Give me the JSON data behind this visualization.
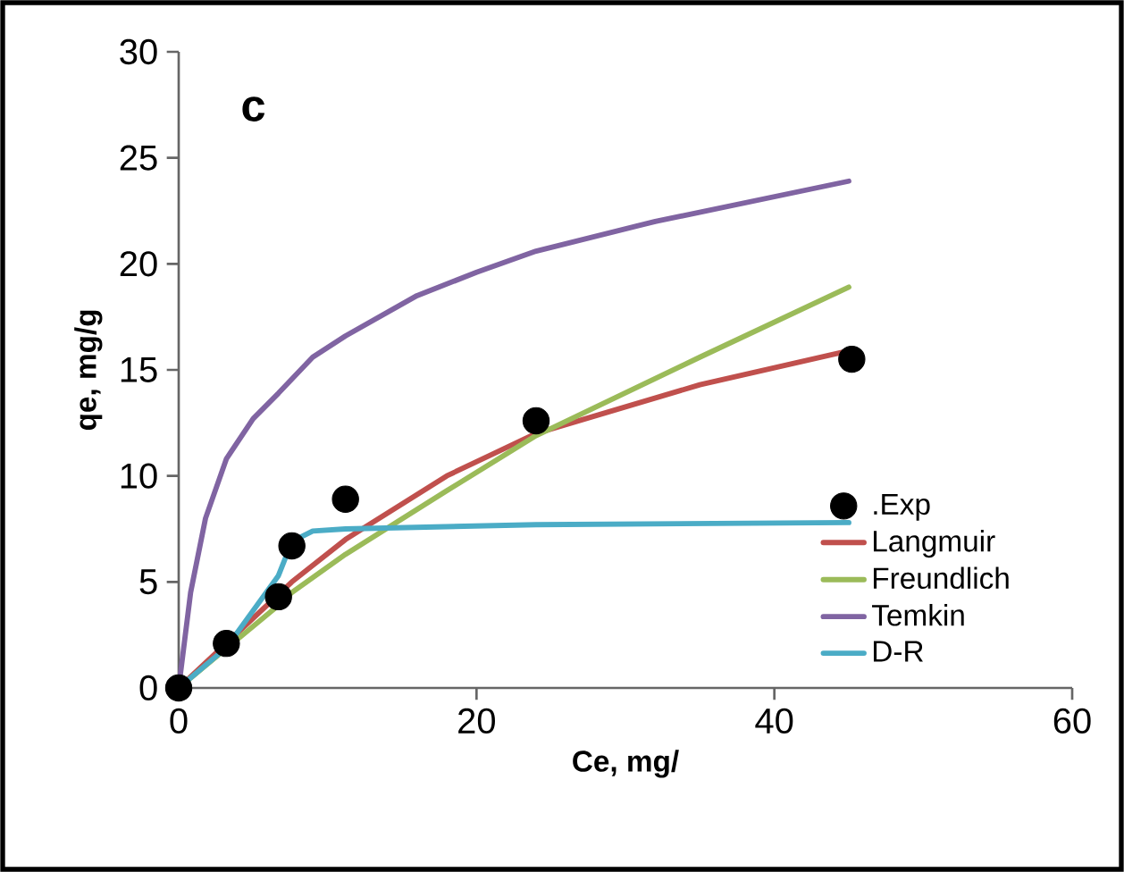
{
  "chart_data": {
    "type": "line",
    "xlabel": "Ce, mg/",
    "ylabel": "qe, mg/g",
    "annotations": [
      "c"
    ],
    "xlim": [
      0,
      60
    ],
    "ylim": [
      0,
      30
    ],
    "xticks": [
      0,
      20,
      40,
      60
    ],
    "yticks": [
      0,
      5,
      10,
      15,
      20,
      25,
      30
    ],
    "grid": false,
    "legend": "right",
    "series": [
      {
        "name": ".Exp",
        "type": "scatter",
        "marker": "circle",
        "color": "#000000",
        "x": [
          0,
          3.2,
          6.7,
          7.6,
          11.2,
          24,
          45.2
        ],
        "values": [
          0,
          2.1,
          4.3,
          6.7,
          8.9,
          12.6,
          15.5
        ]
      },
      {
        "name": "Langmuir",
        "color": "#c0504d",
        "marker": "none",
        "x": [
          0,
          7.6,
          11.2,
          18,
          24,
          35,
          45
        ],
        "values": [
          0,
          5.0,
          7.0,
          10.0,
          12.0,
          14.3,
          15.9
        ]
      },
      {
        "name": "Freundlich",
        "color": "#9bbb59",
        "marker": "none",
        "x": [
          0,
          6.7,
          7.6,
          11.2,
          18,
          24,
          35,
          45
        ],
        "values": [
          0,
          3.9,
          4.5,
          6.3,
          9.3,
          11.9,
          15.6,
          18.9
        ]
      },
      {
        "name": "Temkin",
        "color": "#8064a2",
        "marker": "none",
        "x": [
          0,
          0.8,
          1.8,
          3.2,
          5,
          6.7,
          9,
          11.2,
          16,
          20,
          24,
          32,
          45
        ],
        "values": [
          0,
          4.5,
          8.0,
          10.8,
          12.7,
          13.9,
          15.6,
          16.6,
          18.5,
          19.6,
          20.6,
          22.0,
          23.9
        ]
      },
      {
        "name": "D-R",
        "color": "#4bacc6",
        "marker": "none",
        "x": [
          0,
          3.2,
          6.7,
          7.6,
          9,
          11.2,
          24,
          45
        ],
        "values": [
          0,
          1.9,
          5.3,
          6.9,
          7.4,
          7.5,
          7.7,
          7.8
        ]
      }
    ]
  }
}
